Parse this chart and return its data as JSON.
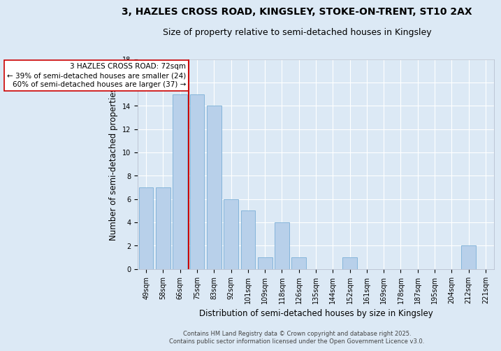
{
  "title1": "3, HAZLES CROSS ROAD, KINGSLEY, STOKE-ON-TRENT, ST10 2AX",
  "title2": "Size of property relative to semi-detached houses in Kingsley",
  "xlabel": "Distribution of semi-detached houses by size in Kingsley",
  "ylabel": "Number of semi-detached properties",
  "categories": [
    "49sqm",
    "58sqm",
    "66sqm",
    "75sqm",
    "83sqm",
    "92sqm",
    "101sqm",
    "109sqm",
    "118sqm",
    "126sqm",
    "135sqm",
    "144sqm",
    "152sqm",
    "161sqm",
    "169sqm",
    "178sqm",
    "187sqm",
    "195sqm",
    "204sqm",
    "212sqm",
    "221sqm"
  ],
  "values": [
    7,
    7,
    15,
    15,
    14,
    6,
    5,
    1,
    4,
    1,
    0,
    0,
    1,
    0,
    0,
    0,
    0,
    0,
    0,
    2,
    0
  ],
  "bar_color": "#b8d0ea",
  "bar_edge_color": "#7aaed6",
  "marker_index": 2,
  "marker_label": "3 HAZLES CROSS ROAD: 72sqm",
  "annotation_line1": "← 39% of semi-detached houses are smaller (24)",
  "annotation_line2": "60% of semi-detached houses are larger (37) →",
  "marker_color": "#cc0000",
  "ylim": [
    0,
    18
  ],
  "yticks": [
    0,
    2,
    4,
    6,
    8,
    10,
    12,
    14,
    16,
    18
  ],
  "background_color": "#dce9f5",
  "plot_bg_color": "#dce9f5",
  "grid_color": "#ffffff",
  "footer": "Contains HM Land Registry data © Crown copyright and database right 2025.\nContains public sector information licensed under the Open Government Licence v3.0.",
  "title_fontsize": 10,
  "subtitle_fontsize": 9,
  "tick_fontsize": 7,
  "label_fontsize": 8.5,
  "annotation_fontsize": 7.5
}
